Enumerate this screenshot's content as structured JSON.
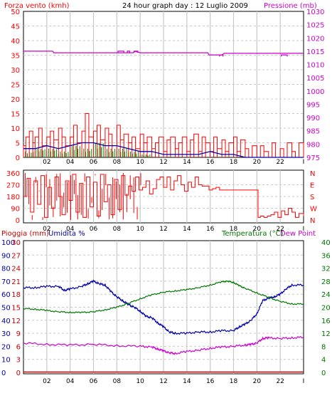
{
  "header": {
    "title": "24 hour graph day : 12 Luglio 2009",
    "left_axis_label": "Forza vento (kmh)",
    "right_axis_label": "Pressione (mb)"
  },
  "x_ticks": [
    "02",
    "04",
    "06",
    "08",
    "10",
    "12",
    "14",
    "16",
    "18",
    "20",
    "22",
    "I"
  ],
  "colors": {
    "wind": "#ff0000",
    "gust_avg": "#0000aa",
    "wind_alt": "#008800",
    "pressure": "#cc00cc",
    "direction": "#ff0000",
    "humidity": "#0000aa",
    "temperature": "#007700",
    "dewpoint": "#cc00cc",
    "rain": "#cc0000",
    "grid": "#c8c8c8"
  },
  "chart_data": [
    {
      "type": "line",
      "name": "wind-pressure",
      "x_range": [
        0,
        24
      ],
      "y_left": {
        "label": "Forza vento (kmh)",
        "ticks": [
          0,
          5,
          10,
          15,
          20,
          25,
          30,
          35,
          40,
          45,
          50
        ],
        "range": [
          0,
          50
        ]
      },
      "y_right": {
        "label": "Pressione (mb)",
        "ticks": [
          975,
          980,
          985,
          990,
          995,
          1000,
          1005,
          1010,
          1015,
          1020,
          1025,
          1030
        ],
        "range": [
          975,
          1030
        ]
      },
      "pressure": {
        "x": [
          0,
          2.5,
          2.6,
          9.4,
          9.5,
          10,
          11,
          15.8,
          15.9,
          17,
          17.2,
          22,
          24
        ],
        "y": [
          1015,
          1015,
          1014.4,
          1014.4,
          1015,
          1014.4,
          1014.4,
          1014.4,
          1013.6,
          1013.6,
          1014.2,
          1014.2,
          1014.2
        ]
      },
      "pressure_bumps": [
        {
          "x0": 8.1,
          "x1": 8.6,
          "y": 1015
        },
        {
          "x0": 8.9,
          "x1": 9.1,
          "y": 1015
        },
        {
          "x0": 9.5,
          "x1": 9.8,
          "y": 1015
        },
        {
          "x0": 16.8,
          "x1": 17.1,
          "y": 1013.6
        },
        {
          "x0": 22.1,
          "x1": 22.6,
          "y": 1013.6
        }
      ],
      "wind_speed": {
        "x": [
          0,
          0.2,
          0.5,
          0.8,
          1,
          1.3,
          1.6,
          2,
          2.3,
          2.6,
          3,
          3.3,
          3.6,
          4,
          4.3,
          4.6,
          5,
          5.3,
          5.6,
          6,
          6.3,
          6.6,
          7,
          7.3,
          7.6,
          8,
          8.3,
          8.6,
          9,
          9.3,
          9.6,
          10,
          10.3,
          10.6,
          11,
          11.3,
          11.6,
          12,
          12.3,
          12.6,
          13,
          13.3,
          13.6,
          14,
          14.3,
          14.6,
          15,
          15.3,
          15.6,
          16,
          16.3,
          16.6,
          17,
          17.3,
          17.6,
          18,
          18.3,
          18.6,
          19,
          19.3,
          19.6,
          20,
          20.3,
          20.6,
          21,
          21.3,
          21.6,
          22,
          22.3,
          22.6,
          23,
          23.3,
          23.6,
          24
        ],
        "y": [
          4,
          7,
          9,
          5,
          7,
          10,
          4,
          7,
          9,
          6,
          10,
          7,
          4,
          7,
          11,
          5,
          9,
          15,
          7,
          9,
          11,
          6,
          10,
          8,
          4,
          11,
          6,
          8,
          5,
          7,
          3,
          8,
          5,
          7,
          3,
          5,
          7,
          2,
          6,
          7,
          3,
          5,
          7,
          2,
          6,
          8,
          2,
          7,
          5,
          2,
          7,
          3,
          6,
          2,
          5,
          7,
          2,
          6,
          3,
          0,
          4,
          0,
          4,
          2,
          0,
          5,
          0,
          3,
          0,
          5,
          2,
          0,
          5,
          0
        ]
      },
      "wind_avg": {
        "x": [
          0,
          1,
          2,
          3,
          4,
          5,
          6,
          7,
          8,
          9,
          10,
          11,
          12,
          13,
          14,
          15,
          16,
          17,
          18,
          19,
          24
        ],
        "y": [
          3,
          3,
          4,
          3,
          4,
          5,
          5,
          4,
          4,
          3,
          2,
          2,
          1,
          1,
          1,
          1,
          2,
          1,
          1,
          0,
          0
        ]
      },
      "wind_green": {
        "x": [
          0,
          1,
          2,
          3,
          4,
          5,
          6,
          7,
          8,
          9,
          10,
          11,
          12,
          24
        ],
        "y": [
          2,
          3,
          3,
          2,
          4,
          3,
          5,
          3,
          3,
          2,
          1,
          0,
          0,
          0
        ]
      }
    },
    {
      "type": "line",
      "name": "wind-direction",
      "x_range": [
        0,
        24
      ],
      "y_left": {
        "ticks": [
          0,
          90,
          180,
          270,
          360
        ],
        "range": [
          0,
          360
        ]
      },
      "y_right": {
        "ticks": [
          "N",
          "E",
          "S",
          "W",
          "N"
        ]
      },
      "direction": {
        "x": [
          0,
          0.3,
          0.6,
          0.9,
          1.2,
          1.5,
          1.8,
          2.1,
          2.4,
          2.7,
          3,
          3.3,
          3.6,
          3.9,
          4.2,
          4.5,
          4.8,
          5.1,
          5.4,
          5.7,
          6,
          6.3,
          6.6,
          6.9,
          7.2,
          7.5,
          7.8,
          8.1,
          8.4,
          8.7,
          9,
          9.3,
          9.6,
          9.9,
          10.2,
          10.5,
          10.8,
          11.1,
          11.4,
          11.7,
          12,
          12.3,
          12.6,
          12.9,
          13.2,
          13.5,
          13.8,
          14.1,
          14.4,
          14.7,
          15,
          15.3,
          15.6,
          15.9,
          16.2,
          16.5,
          16.8,
          17.1,
          17.4,
          17.7,
          18,
          18.3,
          18.6,
          18.9,
          19.2,
          19.5,
          19.8,
          20,
          20.1,
          20.3,
          20.6,
          20.9,
          21.2,
          21.5,
          21.8,
          22.1,
          22.4,
          22.7,
          23,
          23.3,
          23.6,
          24
        ],
        "y": [
          180,
          320,
          60,
          300,
          120,
          340,
          20,
          250,
          90,
          330,
          180,
          40,
          300,
          150,
          350,
          60,
          280,
          20,
          330,
          100,
          290,
          30,
          350,
          140,
          270,
          40,
          310,
          80,
          340,
          190,
          260,
          220,
          330,
          230,
          250,
          300,
          200,
          240,
          310,
          330,
          250,
          330,
          230,
          300,
          340,
          270,
          220,
          290,
          250,
          330,
          270,
          260,
          260,
          230,
          240,
          250,
          230,
          230,
          230,
          230,
          230,
          230,
          230,
          230,
          230,
          230,
          230,
          230,
          20,
          30,
          20,
          30,
          40,
          60,
          20,
          70,
          40,
          90,
          60,
          20,
          50,
          30
        ]
      }
    },
    {
      "type": "line",
      "name": "temp-humidity",
      "x_range": [
        0,
        24
      ],
      "labels": {
        "rain": "Pioggia (mm)",
        "humidity": "Umidita %",
        "temperature": "Temperatura (°C)",
        "dewpoint": "Dew Point"
      },
      "y_left_humidity": {
        "ticks": [
          0,
          10,
          20,
          30,
          40,
          50,
          60,
          70,
          80,
          90,
          100
        ],
        "range": [
          0,
          100
        ]
      },
      "y_left_rain": {
        "ticks": [
          0,
          3,
          6,
          9,
          12,
          15,
          18,
          21,
          24,
          27,
          30
        ],
        "range": [
          0,
          30
        ]
      },
      "y_right": {
        "ticks": [
          0,
          4,
          8,
          12,
          16,
          20,
          24,
          28,
          32,
          36,
          40
        ],
        "range": [
          0,
          40
        ]
      },
      "humidity": {
        "x": [
          0,
          1,
          2,
          3,
          3.5,
          4,
          5,
          5.5,
          6,
          6.5,
          7,
          7.5,
          8,
          8.5,
          9,
          9.5,
          10,
          10.5,
          11,
          11.5,
          12,
          12.5,
          13,
          14,
          15,
          16,
          17,
          18,
          18.5,
          19,
          19.5,
          20,
          20.5,
          21,
          21.5,
          22,
          22.5,
          23,
          24
        ],
        "y": [
          65,
          65,
          66,
          66,
          63,
          64,
          66,
          68,
          70,
          68,
          67,
          62,
          58,
          55,
          52,
          50,
          47,
          43,
          42,
          38,
          35,
          31,
          30,
          30,
          31,
          31,
          32,
          32,
          35,
          37,
          40,
          45,
          55,
          57,
          58,
          60,
          64,
          67,
          67
        ]
      },
      "temperature": {
        "x": [
          0,
          1,
          2,
          3,
          4,
          5,
          6,
          7,
          8,
          9,
          10,
          11,
          12,
          13,
          14,
          15,
          16,
          17,
          17.5,
          18,
          18.5,
          19,
          20,
          21,
          22,
          23,
          24
        ],
        "y": [
          19.6,
          19.4,
          19,
          18.6,
          18.4,
          18.4,
          18.6,
          19.2,
          20,
          21.2,
          22.6,
          23.8,
          24.6,
          25,
          25.4,
          26,
          26.8,
          27.8,
          28,
          27.6,
          26.6,
          25.8,
          24.4,
          23,
          21.8,
          21,
          21
        ]
      },
      "dewpoint": {
        "x": [
          0,
          2,
          4,
          6,
          8,
          10,
          11,
          11.5,
          12,
          12.5,
          13,
          14,
          15,
          16,
          17,
          18,
          19,
          19.5,
          20,
          20.5,
          21,
          22,
          23,
          24
        ],
        "y": [
          9,
          8.6,
          8.4,
          8.6,
          8.2,
          8,
          7.8,
          7.2,
          6.6,
          6,
          5.8,
          6.4,
          6.8,
          7.4,
          7.8,
          8,
          8.4,
          8.6,
          9,
          10.4,
          10.6,
          10.4,
          10.6,
          10.8
        ]
      },
      "rain": {
        "x": [
          0,
          24
        ],
        "y": [
          0,
          0
        ]
      }
    }
  ]
}
